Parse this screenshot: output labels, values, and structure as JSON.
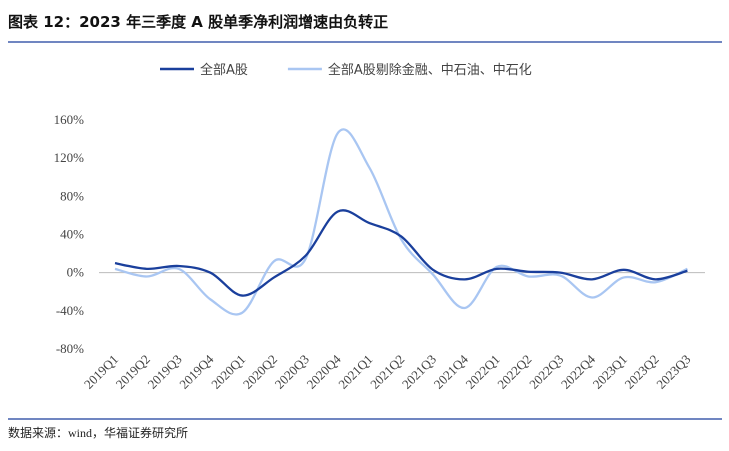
{
  "chart_data": {
    "type": "line",
    "title": "图表 12：2023 年三季度 A 股单季净利润增速由负转正",
    "source": "数据来源：wind，华福证券研究所",
    "categories": [
      "2019Q1",
      "2019Q2",
      "2019Q3",
      "2019Q4",
      "2020Q1",
      "2020Q2",
      "2020Q3",
      "2020Q4",
      "2021Q1",
      "2021Q2",
      "2021Q3",
      "2021Q4",
      "2022Q1",
      "2022Q2",
      "2022Q3",
      "2022Q4",
      "2023Q1",
      "2023Q2",
      "2023Q3"
    ],
    "series": [
      {
        "name": "全部A股",
        "color": "#1a3f9c",
        "values": [
          10,
          4,
          7,
          0,
          -24,
          -5,
          18,
          64,
          52,
          38,
          3,
          -7,
          4,
          1,
          0,
          -7,
          3,
          -7,
          2
        ]
      },
      {
        "name": "全部A股剔除金融、中石油、中石化",
        "color": "#a9c6f2",
        "values": [
          4,
          -4,
          4,
          -28,
          -42,
          12,
          15,
          146,
          110,
          35,
          -2,
          -37,
          6,
          -4,
          -3,
          -26,
          -5,
          -10,
          4
        ]
      }
    ],
    "ylim": [
      -80,
      160
    ],
    "yticks": [
      {
        "value": -80,
        "label": "-80%"
      },
      {
        "value": -40,
        "label": "-40%"
      },
      {
        "value": 0,
        "label": "0%"
      },
      {
        "value": 40,
        "label": "40%"
      },
      {
        "value": 80,
        "label": "80%"
      },
      {
        "value": 120,
        "label": "120%"
      },
      {
        "value": 160,
        "label": "160%"
      }
    ],
    "grid": false,
    "legend": "top"
  }
}
